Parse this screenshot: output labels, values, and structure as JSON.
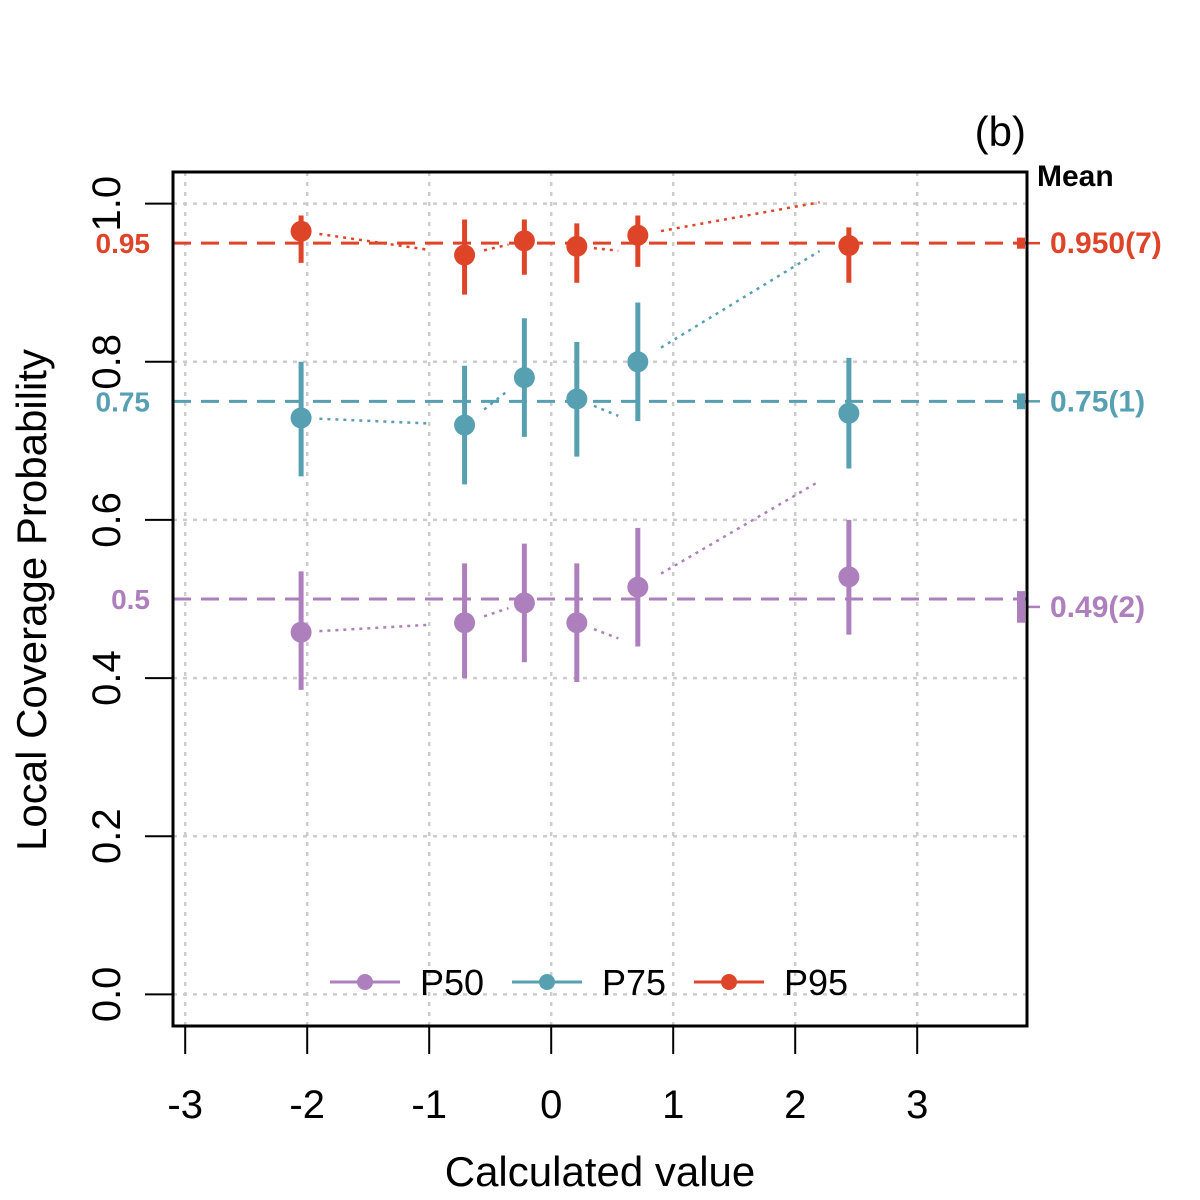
{
  "chart_data": {
    "type": "scatter",
    "panel_label": "(b)",
    "title": "",
    "xlabel": "Calculated value",
    "ylabel": "Local Coverage Probability",
    "xlim": [
      -3.1,
      3.9
    ],
    "ylim": [
      -0.04,
      1.04
    ],
    "x_ticks": [
      -3,
      -2,
      -1,
      0,
      1,
      2,
      3
    ],
    "x_tick_labels": [
      "-3",
      "-2",
      "-1",
      "0",
      "1",
      "2",
      "3"
    ],
    "y_ticks": [
      0.0,
      0.2,
      0.4,
      0.6,
      0.8,
      1.0
    ],
    "y_tick_labels": [
      "0.0",
      "0.2",
      "0.4",
      "0.6",
      "0.8",
      "1.0"
    ],
    "grid": true,
    "mean_header": "Mean",
    "legend_position": "bottom-center",
    "series": [
      {
        "name": "P50",
        "color": "#AE7FBD",
        "target": 0.5,
        "target_label": "0.5",
        "mean": 0.49,
        "mean_err": 0.02,
        "mean_label": "0.49(2)",
        "x": [
          -2.05,
          -0.71,
          -0.22,
          0.21,
          0.71,
          2.44
        ],
        "y": [
          0.458,
          0.47,
          0.495,
          0.47,
          0.515,
          0.528
        ],
        "err_low": [
          0.385,
          0.4,
          0.42,
          0.395,
          0.44,
          0.455
        ],
        "err_high": [
          0.535,
          0.545,
          0.57,
          0.545,
          0.59,
          0.6
        ]
      },
      {
        "name": "P75",
        "color": "#56A0B2",
        "target": 0.75,
        "target_label": "0.75",
        "mean": 0.75,
        "mean_err": 0.01,
        "mean_label": "0.75(1)",
        "x": [
          -2.05,
          -0.71,
          -0.22,
          0.21,
          0.71,
          2.44
        ],
        "y": [
          0.729,
          0.72,
          0.78,
          0.753,
          0.8,
          0.735
        ],
        "err_low": [
          0.655,
          0.645,
          0.705,
          0.68,
          0.725,
          0.665
        ],
        "err_high": [
          0.8,
          0.795,
          0.855,
          0.825,
          0.875,
          0.805
        ]
      },
      {
        "name": "P95",
        "color": "#DD4428",
        "target": 0.95,
        "target_label": "0.95",
        "mean": 0.95,
        "mean_err": 0.007,
        "mean_label": "0.950(7)",
        "x": [
          -2.05,
          -0.71,
          -0.22,
          0.21,
          0.71,
          2.44
        ],
        "y": [
          0.965,
          0.935,
          0.953,
          0.946,
          0.96,
          0.947
        ],
        "err_low": [
          0.925,
          0.885,
          0.91,
          0.9,
          0.92,
          0.9
        ],
        "err_high": [
          0.985,
          0.98,
          0.98,
          0.975,
          0.985,
          0.97
        ]
      }
    ]
  }
}
